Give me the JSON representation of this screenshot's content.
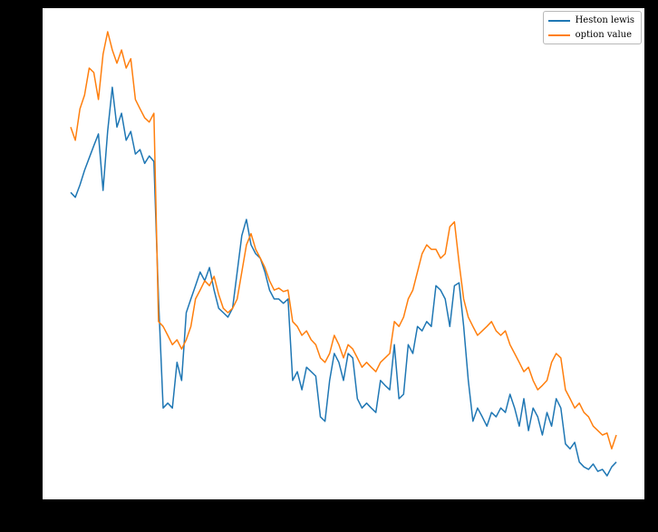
{
  "figure": {
    "background_color": "#000000",
    "plot_background_color": "#ffffff"
  },
  "legend": {
    "position": "upper right",
    "items": [
      {
        "label": "Heston lewis",
        "color": "#1f77b4"
      },
      {
        "label": "option value",
        "color": "#ff7f0e"
      }
    ]
  },
  "chart_data": {
    "type": "line",
    "title": "",
    "xlabel": "",
    "ylabel": "",
    "grid": false,
    "legend_position": "upper right",
    "x_range": [
      0,
      118
    ],
    "ylim": [
      0,
      10
    ],
    "series": [
      {
        "name": "Heston lewis",
        "color": "#1f77b4",
        "values": [
          6.25,
          6.15,
          6.4,
          6.7,
          6.95,
          7.2,
          7.44,
          6.29,
          7.5,
          8.39,
          7.58,
          7.86,
          7.31,
          7.49,
          7.03,
          7.12,
          6.84,
          6.99,
          6.88,
          4.08,
          1.86,
          1.96,
          1.86,
          2.79,
          2.42,
          3.8,
          4.08,
          4.35,
          4.63,
          4.45,
          4.72,
          4.26,
          3.89,
          3.8,
          3.71,
          3.89,
          4.63,
          5.37,
          5.7,
          5.18,
          5.0,
          4.91,
          4.63,
          4.26,
          4.08,
          4.08,
          3.99,
          4.08,
          2.42,
          2.6,
          2.23,
          2.69,
          2.6,
          2.51,
          1.68,
          1.59,
          2.42,
          2.97,
          2.79,
          2.42,
          2.97,
          2.88,
          2.05,
          1.86,
          1.96,
          1.86,
          1.77,
          2.42,
          2.32,
          2.23,
          3.15,
          2.05,
          2.14,
          3.15,
          2.97,
          3.52,
          3.43,
          3.62,
          3.52,
          4.35,
          4.26,
          4.08,
          3.52,
          4.35,
          4.41,
          3.52,
          2.42,
          1.59,
          1.86,
          1.68,
          1.49,
          1.77,
          1.68,
          1.86,
          1.77,
          2.14,
          1.86,
          1.49,
          2.05,
          1.4,
          1.86,
          1.68,
          1.31,
          1.77,
          1.49,
          2.05,
          1.86,
          1.13,
          1.03,
          1.16,
          0.76,
          0.66,
          0.61,
          0.72,
          0.57,
          0.61,
          0.48,
          0.66,
          0.76
        ]
      },
      {
        "name": "option value",
        "color": "#ff7f0e",
        "values": [
          7.58,
          7.31,
          7.95,
          8.23,
          8.78,
          8.69,
          8.14,
          9.06,
          9.52,
          9.15,
          8.88,
          9.15,
          8.78,
          8.97,
          8.14,
          7.95,
          7.77,
          7.68,
          7.86,
          3.62,
          3.52,
          3.34,
          3.15,
          3.25,
          3.06,
          3.25,
          3.52,
          4.08,
          4.26,
          4.45,
          4.35,
          4.54,
          4.17,
          3.89,
          3.8,
          3.89,
          4.08,
          4.63,
          5.18,
          5.41,
          5.09,
          4.91,
          4.72,
          4.45,
          4.26,
          4.3,
          4.23,
          4.26,
          3.62,
          3.52,
          3.34,
          3.43,
          3.25,
          3.15,
          2.88,
          2.79,
          2.97,
          3.34,
          3.15,
          2.88,
          3.15,
          3.06,
          2.88,
          2.69,
          2.79,
          2.69,
          2.6,
          2.79,
          2.88,
          2.97,
          3.62,
          3.52,
          3.71,
          4.08,
          4.26,
          4.63,
          5.0,
          5.18,
          5.09,
          5.09,
          4.91,
          5.0,
          5.55,
          5.65,
          4.82,
          4.08,
          3.71,
          3.52,
          3.34,
          3.43,
          3.52,
          3.62,
          3.43,
          3.34,
          3.43,
          3.15,
          2.97,
          2.79,
          2.6,
          2.69,
          2.42,
          2.23,
          2.32,
          2.42,
          2.79,
          2.97,
          2.88,
          2.23,
          2.05,
          1.86,
          1.96,
          1.77,
          1.68,
          1.49,
          1.4,
          1.31,
          1.35,
          1.03,
          1.31
        ]
      }
    ]
  }
}
